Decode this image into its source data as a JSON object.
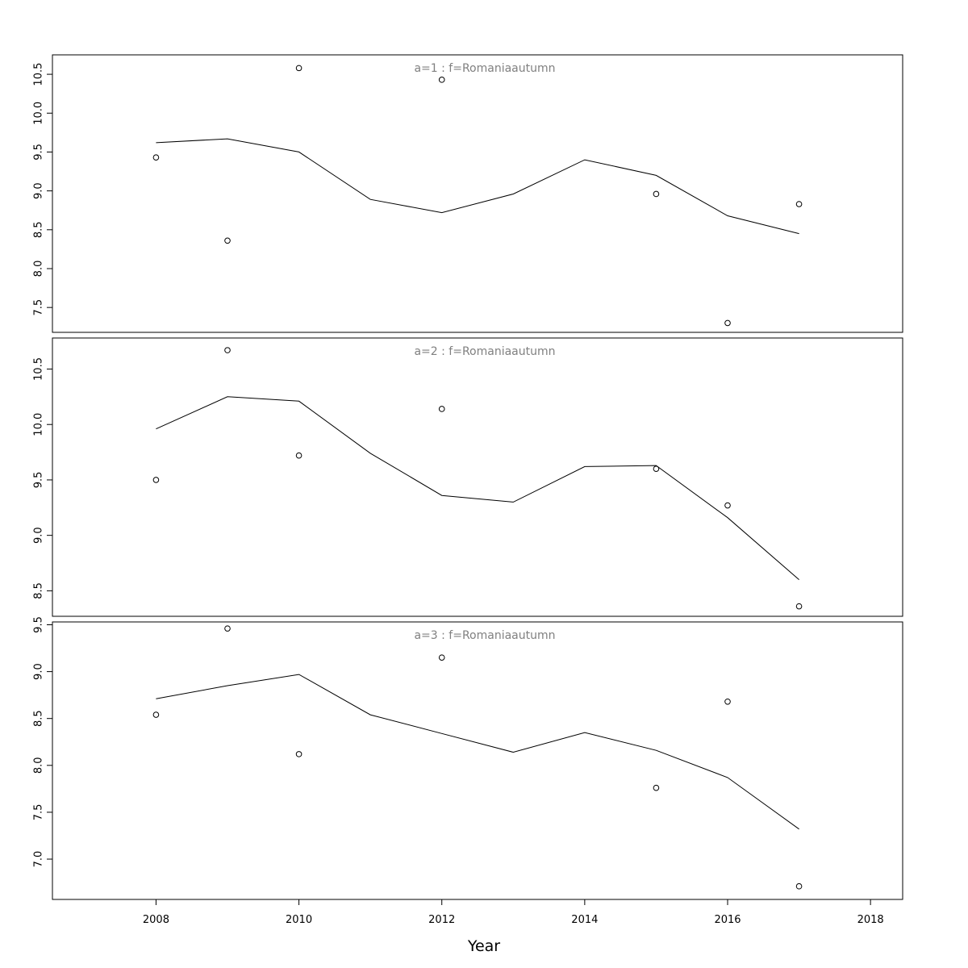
{
  "chart_data": {
    "type": "scatter",
    "xlabel": "Year",
    "xlim": [
      2006.55,
      2018.45
    ],
    "xticks": [
      2008,
      2010,
      2012,
      2014,
      2016,
      2018
    ],
    "panels": [
      {
        "title": "a=1  :  f=Romaniaautumn",
        "ylim": [
          7.18,
          10.75
        ],
        "yticks": [
          7.5,
          8.0,
          8.5,
          9.0,
          9.5,
          10.0,
          10.5
        ],
        "ytick_labels": [
          "7.5",
          "8.0",
          "8.5",
          "9.0",
          "9.5",
          "10.0",
          "10.5"
        ],
        "observed": {
          "x": [
            2008,
            2009,
            2010,
            2012,
            2015,
            2016,
            2017
          ],
          "y": [
            9.43,
            8.36,
            10.58,
            10.43,
            8.96,
            7.3,
            8.83
          ]
        },
        "fitted": {
          "x": [
            2008,
            2009,
            2010,
            2011,
            2012,
            2013,
            2014,
            2015,
            2016,
            2017
          ],
          "y": [
            9.62,
            9.67,
            9.5,
            8.89,
            8.72,
            8.96,
            9.4,
            9.2,
            8.68,
            8.45
          ]
        }
      },
      {
        "title": "a=2  :  f=Romaniaautumn",
        "ylim": [
          8.27,
          10.78
        ],
        "yticks": [
          8.5,
          9.0,
          9.5,
          10.0,
          10.5
        ],
        "ytick_labels": [
          "8.5",
          "9.0",
          "9.5",
          "10.0",
          "10.5"
        ],
        "observed": {
          "x": [
            2008,
            2009,
            2010,
            2012,
            2015,
            2016,
            2017
          ],
          "y": [
            9.5,
            10.67,
            9.72,
            10.14,
            9.6,
            9.27,
            8.36
          ]
        },
        "fitted": {
          "x": [
            2008,
            2009,
            2010,
            2011,
            2012,
            2013,
            2014,
            2015,
            2016,
            2017
          ],
          "y": [
            9.96,
            10.25,
            10.21,
            9.74,
            9.36,
            9.3,
            9.62,
            9.63,
            9.16,
            8.6
          ]
        }
      },
      {
        "title": "a=3  :  f=Romaniaautumn",
        "ylim": [
          6.57,
          9.53
        ],
        "yticks": [
          7.0,
          7.5,
          8.0,
          8.5,
          9.0,
          9.5
        ],
        "ytick_labels": [
          "7.0",
          "7.5",
          "8.0",
          "8.5",
          "9.0",
          "9.5"
        ],
        "observed": {
          "x": [
            2008,
            2009,
            2010,
            2012,
            2015,
            2016,
            2017
          ],
          "y": [
            8.54,
            9.46,
            8.12,
            9.15,
            7.76,
            8.68,
            6.71
          ]
        },
        "fitted": {
          "x": [
            2008,
            2009,
            2010,
            2011,
            2012,
            2013,
            2014,
            2015,
            2016,
            2017
          ],
          "y": [
            8.71,
            8.85,
            8.97,
            8.54,
            8.34,
            8.14,
            8.35,
            8.16,
            7.87,
            7.32
          ]
        }
      }
    ]
  }
}
